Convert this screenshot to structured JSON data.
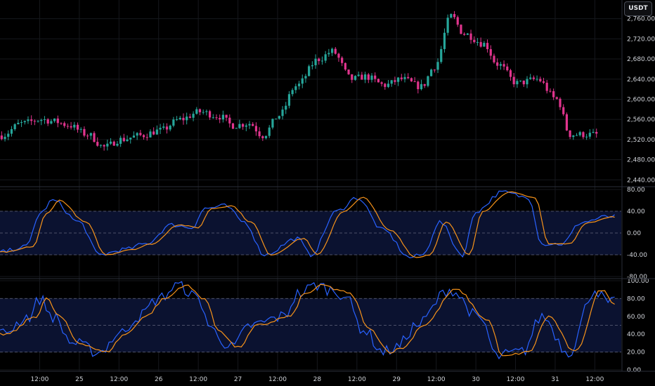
{
  "currency_label": "USDT",
  "colors": {
    "background": "#000000",
    "grid": "#16181d",
    "separator": "#2a2e39",
    "up": "#26a69a",
    "down": "#e0348d",
    "fast_line": "#2962ff",
    "slow_line": "#f7931a",
    "band_fill": "#0b1230",
    "band_line": "#4c5068",
    "text": "#cfd2d8"
  },
  "chart_data": [
    {
      "type": "candlestick",
      "title": "",
      "y_ticks": [
        "2,760.00",
        "2,720.00",
        "2,680.00",
        "2,640.00",
        "2,600.00",
        "2,560.00",
        "2,520.00",
        "2,480.00",
        "2,440.00"
      ],
      "ylim": [
        2432,
        2786
      ],
      "anchors_time": [
        0,
        6,
        12,
        16,
        20,
        26,
        31,
        36,
        42,
        48,
        54,
        60,
        66,
        70,
        75,
        79,
        84,
        89,
        96,
        100,
        106,
        110,
        116,
        121,
        127,
        131,
        136,
        140,
        146,
        150,
        156,
        162,
        168,
        172,
        178
      ],
      "anchors_close": [
        2528,
        2552,
        2560,
        2556,
        2549,
        2530,
        2505,
        2520,
        2528,
        2538,
        2560,
        2575,
        2566,
        2548,
        2552,
        2528,
        2568,
        2626,
        2680,
        2695,
        2640,
        2645,
        2628,
        2640,
        2625,
        2665,
        2765,
        2730,
        2710,
        2670,
        2632,
        2640,
        2600,
        2530,
        2530
      ]
    },
    {
      "type": "line",
      "title": "",
      "y_ticks": [
        "80.00",
        "40.00",
        "0.00",
        "-40.00",
        "-80.00"
      ],
      "ylim": [
        -80,
        80
      ],
      "bands": [
        40,
        0,
        -40
      ],
      "anchors_time": [
        0,
        8,
        12,
        16,
        24,
        30,
        38,
        44,
        52,
        58,
        62,
        68,
        74,
        80,
        90,
        94,
        102,
        108,
        116,
        124,
        128,
        133,
        140,
        144,
        152,
        160,
        164,
        170,
        176,
        184
      ],
      "anchors_value": [
        -35,
        -25,
        35,
        60,
        20,
        -40,
        -30,
        -20,
        15,
        10,
        45,
        50,
        20,
        -40,
        -10,
        -40,
        40,
        65,
        5,
        -45,
        -40,
        20,
        -40,
        40,
        75,
        65,
        -20,
        -20,
        20,
        30
      ],
      "series_fast": {
        "lead": 0,
        "noise": 8
      },
      "series_slow": {
        "lead": 2,
        "noise": 2
      }
    },
    {
      "type": "line",
      "title": "",
      "y_ticks": [
        "100.00",
        "80.00",
        "60.00",
        "40.00",
        "20.00",
        "0.00"
      ],
      "ylim": [
        0,
        100
      ],
      "bands": [
        80,
        50,
        20
      ],
      "anchors_time": [
        0,
        9,
        12,
        16,
        22,
        30,
        36,
        42,
        48,
        54,
        60,
        64,
        70,
        76,
        86,
        90,
        96,
        100,
        104,
        110,
        116,
        120,
        126,
        136,
        146,
        150,
        158,
        164,
        172,
        180,
        184
      ],
      "anchors_value": [
        40,
        60,
        80,
        60,
        30,
        20,
        40,
        60,
        80,
        95,
        80,
        45,
        25,
        50,
        60,
        85,
        95,
        90,
        85,
        45,
        20,
        25,
        50,
        90,
        55,
        15,
        20,
        60,
        20,
        90,
        75
      ],
      "series_fast": {
        "lead": 0,
        "noise": 14
      },
      "series_slow": {
        "lead": 2,
        "noise": 3
      }
    }
  ],
  "x_axis": {
    "labels": [
      "12:00",
      "25",
      "12:00",
      "26",
      "12:00",
      "27",
      "12:00",
      "28",
      "12:00",
      "29",
      "12:00",
      "30",
      "12:00",
      "31",
      "12:00"
    ],
    "positions_hours": [
      12,
      24,
      36,
      48,
      60,
      72,
      84,
      96,
      108,
      120,
      132,
      144,
      156,
      168,
      180
    ]
  }
}
